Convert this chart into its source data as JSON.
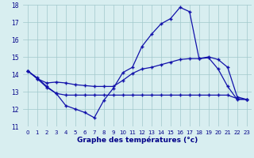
{
  "title": "Graphe des températures (°c)",
  "background_color": "#d8eef0",
  "grid_color": "#a0c8cc",
  "line_color": "#1111aa",
  "xlim": [
    -0.5,
    23.5
  ],
  "ylim": [
    11,
    18
  ],
  "yticks": [
    11,
    12,
    13,
    14,
    15,
    16,
    17,
    18
  ],
  "xticks": [
    0,
    1,
    2,
    3,
    4,
    5,
    6,
    7,
    8,
    9,
    10,
    11,
    12,
    13,
    14,
    15,
    16,
    17,
    18,
    19,
    20,
    21,
    22,
    23
  ],
  "hours": [
    0,
    1,
    2,
    3,
    4,
    5,
    6,
    7,
    8,
    9,
    10,
    11,
    12,
    13,
    14,
    15,
    16,
    17,
    18,
    19,
    20,
    21,
    22,
    23
  ],
  "curve1": [
    14.2,
    13.8,
    13.3,
    12.9,
    12.2,
    12.0,
    11.8,
    11.5,
    12.5,
    13.2,
    14.1,
    14.4,
    15.6,
    16.3,
    16.9,
    17.2,
    17.85,
    17.6,
    14.9,
    14.95,
    14.3,
    13.3,
    12.55,
    12.55
  ],
  "curve2": [
    14.2,
    13.75,
    13.5,
    13.55,
    13.5,
    13.4,
    13.35,
    13.3,
    13.3,
    13.3,
    13.65,
    14.05,
    14.3,
    14.4,
    14.55,
    14.7,
    14.85,
    14.9,
    14.9,
    15.0,
    14.85,
    14.4,
    12.7,
    12.55
  ],
  "curve3": [
    14.2,
    13.75,
    13.25,
    12.9,
    12.8,
    12.8,
    12.8,
    12.8,
    12.8,
    12.8,
    12.8,
    12.8,
    12.8,
    12.8,
    12.8,
    12.8,
    12.8,
    12.8,
    12.8,
    12.8,
    12.8,
    12.8,
    12.6,
    12.55
  ]
}
